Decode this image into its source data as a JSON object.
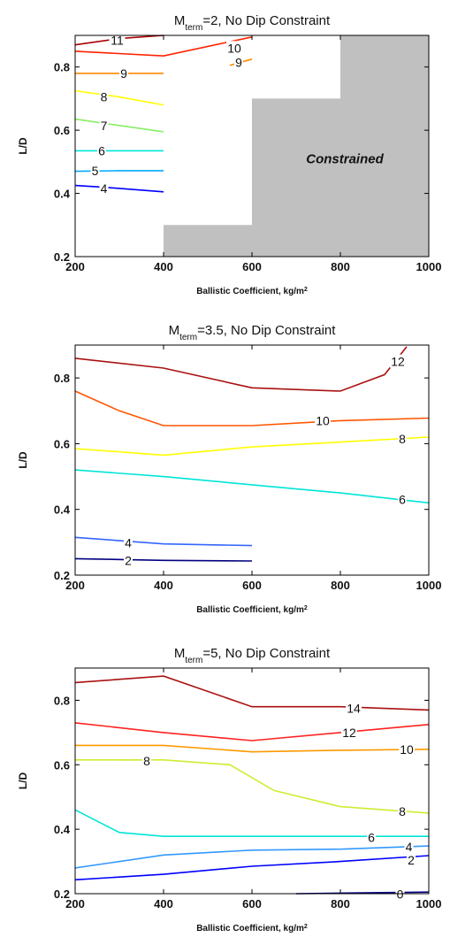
{
  "chart_data": [
    {
      "type": "line",
      "title": "M",
      "title_sub": "term",
      "title_suffix": "=2, No Dip Constraint",
      "xlabel": "Ballistic Coefficient, kg/m",
      "xlabel_sup": "2",
      "ylabel": "L/D",
      "xlim": [
        200,
        1000
      ],
      "ylim": [
        0.2,
        0.9
      ],
      "xticks": [
        "200",
        "400",
        "600",
        "800",
        "1000"
      ],
      "yticks": [
        "0.2",
        "0.4",
        "0.6",
        "0.8"
      ],
      "ytick_values": [
        0.2,
        0.4,
        0.6,
        0.8
      ],
      "xtick_values": [
        200,
        400,
        600,
        800,
        1000
      ],
      "grid": false,
      "constrained_region": {
        "label": "Constrained",
        "color": "#c0c0c0",
        "boundary": [
          [
            400,
            0.2
          ],
          [
            400,
            0.3
          ],
          [
            600,
            0.3
          ],
          [
            600,
            0.7
          ],
          [
            800,
            0.7
          ],
          [
            800,
            0.9
          ],
          [
            1000,
            0.9
          ],
          [
            1000,
            0.2
          ]
        ]
      },
      "series": [
        {
          "label": "4",
          "color": "#0000ff",
          "x": [
            200,
            260,
            400
          ],
          "y": [
            0.425,
            0.42,
            0.405
          ],
          "label_at": [
            265,
            0.415
          ]
        },
        {
          "label": "5",
          "color": "#00aaff",
          "x": [
            200,
            300,
            400
          ],
          "y": [
            0.47,
            0.472,
            0.472
          ],
          "label_at": [
            245,
            0.472
          ]
        },
        {
          "label": "6",
          "color": "#00e5d8",
          "x": [
            200,
            300,
            400
          ],
          "y": [
            0.535,
            0.535,
            0.535
          ],
          "label_at": [
            260,
            0.535
          ]
        },
        {
          "label": "7",
          "color": "#88ee66",
          "x": [
            200,
            300,
            400
          ],
          "y": [
            0.635,
            0.615,
            0.595
          ],
          "label_at": [
            265,
            0.615
          ]
        },
        {
          "label": "8",
          "color": "#ffff00",
          "x": [
            200,
            300,
            400
          ],
          "y": [
            0.725,
            0.705,
            0.68
          ],
          "label_at": [
            265,
            0.705
          ]
        },
        {
          "label": "9",
          "color": "#ff8800",
          "x": [
            200,
            300,
            400
          ],
          "y": [
            0.78,
            0.78,
            0.78
          ],
          "label_at": [
            310,
            0.78
          ]
        },
        {
          "label": "9",
          "color": "#ff8800",
          "x": [
            550,
            600
          ],
          "y": [
            0.805,
            0.825
          ],
          "label_at": [
            570,
            0.815
          ]
        },
        {
          "label": "10",
          "color": "#ff2200",
          "x": [
            200,
            400,
            600
          ],
          "y": [
            0.85,
            0.835,
            0.895
          ],
          "label_at": [
            560,
            0.86
          ]
        },
        {
          "label": "11",
          "color": "#aa0000",
          "x": [
            200,
            300,
            400
          ],
          "y": [
            0.87,
            0.89,
            0.9
          ],
          "label_at": [
            295,
            0.885
          ]
        }
      ]
    },
    {
      "type": "line",
      "title": "M",
      "title_sub": "term",
      "title_suffix": "=3.5, No Dip Constraint",
      "xlabel": "Ballistic Coefficient, kg/m",
      "xlabel_sup": "2",
      "ylabel": "L/D",
      "xlim": [
        200,
        1000
      ],
      "ylim": [
        0.2,
        0.9
      ],
      "xticks": [
        "200",
        "400",
        "600",
        "800",
        "1000"
      ],
      "yticks": [
        "0.2",
        "0.4",
        "0.6",
        "0.8"
      ],
      "ytick_values": [
        0.2,
        0.4,
        0.6,
        0.8
      ],
      "xtick_values": [
        200,
        400,
        600,
        800,
        1000
      ],
      "grid": false,
      "series": [
        {
          "label": "2",
          "color": "#000080",
          "x": [
            200,
            400,
            600
          ],
          "y": [
            0.25,
            0.245,
            0.243
          ],
          "label_at": [
            320,
            0.245
          ]
        },
        {
          "label": "4",
          "color": "#3366ff",
          "x": [
            200,
            400,
            600
          ],
          "y": [
            0.315,
            0.295,
            0.29
          ],
          "label_at": [
            320,
            0.298
          ]
        },
        {
          "label": "6",
          "color": "#00e5d8",
          "x": [
            200,
            400,
            600,
            800,
            1000
          ],
          "y": [
            0.52,
            0.5,
            0.475,
            0.45,
            0.42
          ],
          "label_at": [
            940,
            0.43
          ]
        },
        {
          "label": "8",
          "color": "#ffff00",
          "x": [
            200,
            400,
            600,
            800,
            1000
          ],
          "y": [
            0.585,
            0.565,
            0.59,
            0.605,
            0.62
          ],
          "label_at": [
            940,
            0.615
          ]
        },
        {
          "label": "10",
          "color": "#ff5500",
          "x": [
            200,
            300,
            400,
            600,
            800,
            1000
          ],
          "y": [
            0.76,
            0.7,
            0.655,
            0.655,
            0.67,
            0.678
          ],
          "label_at": [
            760,
            0.67
          ]
        },
        {
          "label": "12",
          "color": "#aa1111",
          "x": [
            200,
            400,
            600,
            800,
            900,
            950
          ],
          "y": [
            0.86,
            0.83,
            0.77,
            0.76,
            0.81,
            0.895
          ],
          "label_at": [
            930,
            0.85
          ]
        }
      ]
    },
    {
      "type": "line",
      "title": "M",
      "title_sub": "term",
      "title_suffix": "=5, No Dip Constraint",
      "xlabel": "Ballistic Coefficient, kg/m",
      "xlabel_sup": "2",
      "ylabel": "L/D",
      "xlim": [
        200,
        1000
      ],
      "ylim": [
        0.2,
        0.9
      ],
      "xticks": [
        "200",
        "400",
        "600",
        "800",
        "1000"
      ],
      "yticks": [
        "0.2",
        "0.4",
        "0.6",
        "0.8"
      ],
      "ytick_values": [
        0.2,
        0.4,
        0.6,
        0.8
      ],
      "xtick_values": [
        200,
        400,
        600,
        800,
        1000
      ],
      "grid": false,
      "series": [
        {
          "label": "0",
          "color": "#000080",
          "x": [
            700,
            1000
          ],
          "y": [
            0.2,
            0.205
          ],
          "label_at": [
            935,
            0.198
          ]
        },
        {
          "label": "2",
          "color": "#0000ff",
          "x": [
            200,
            400,
            600,
            800,
            1000
          ],
          "y": [
            0.243,
            0.26,
            0.285,
            0.3,
            0.318
          ],
          "label_at": [
            960,
            0.305
          ]
        },
        {
          "label": "4",
          "color": "#3399ff",
          "x": [
            200,
            400,
            600,
            800,
            1000
          ],
          "y": [
            0.28,
            0.32,
            0.335,
            0.338,
            0.348
          ],
          "label_at": [
            955,
            0.345
          ]
        },
        {
          "label": "6",
          "color": "#00e5d8",
          "x": [
            200,
            300,
            400,
            600,
            800,
            1000
          ],
          "y": [
            0.46,
            0.39,
            0.378,
            0.378,
            0.378,
            0.378
          ],
          "label_at": [
            870,
            0.375
          ]
        },
        {
          "label": "8",
          "color": "#ccee33",
          "x": [
            200,
            400,
            550,
            650,
            800,
            1000
          ],
          "y": [
            0.615,
            0.615,
            0.6,
            0.52,
            0.47,
            0.45
          ],
          "label_at": [
            940,
            0.455
          ]
        },
        {
          "label": "8",
          "color": "#ccee33",
          "x": [
            300,
            360
          ],
          "y": [
            0.615,
            0.615
          ],
          "label_at": [
            362,
            0.612
          ]
        },
        {
          "label": "10",
          "color": "#ff9900",
          "x": [
            200,
            400,
            600,
            800,
            1000
          ],
          "y": [
            0.66,
            0.66,
            0.64,
            0.645,
            0.648
          ],
          "label_at": [
            950,
            0.648
          ]
        },
        {
          "label": "12",
          "color": "#ff2222",
          "x": [
            200,
            400,
            600,
            800,
            1000
          ],
          "y": [
            0.73,
            0.7,
            0.675,
            0.7,
            0.725
          ],
          "label_at": [
            820,
            0.7
          ]
        },
        {
          "label": "14",
          "color": "#aa1111",
          "x": [
            200,
            400,
            600,
            800,
            1000
          ],
          "y": [
            0.855,
            0.875,
            0.78,
            0.78,
            0.77
          ],
          "label_at": [
            830,
            0.775
          ]
        }
      ]
    }
  ]
}
